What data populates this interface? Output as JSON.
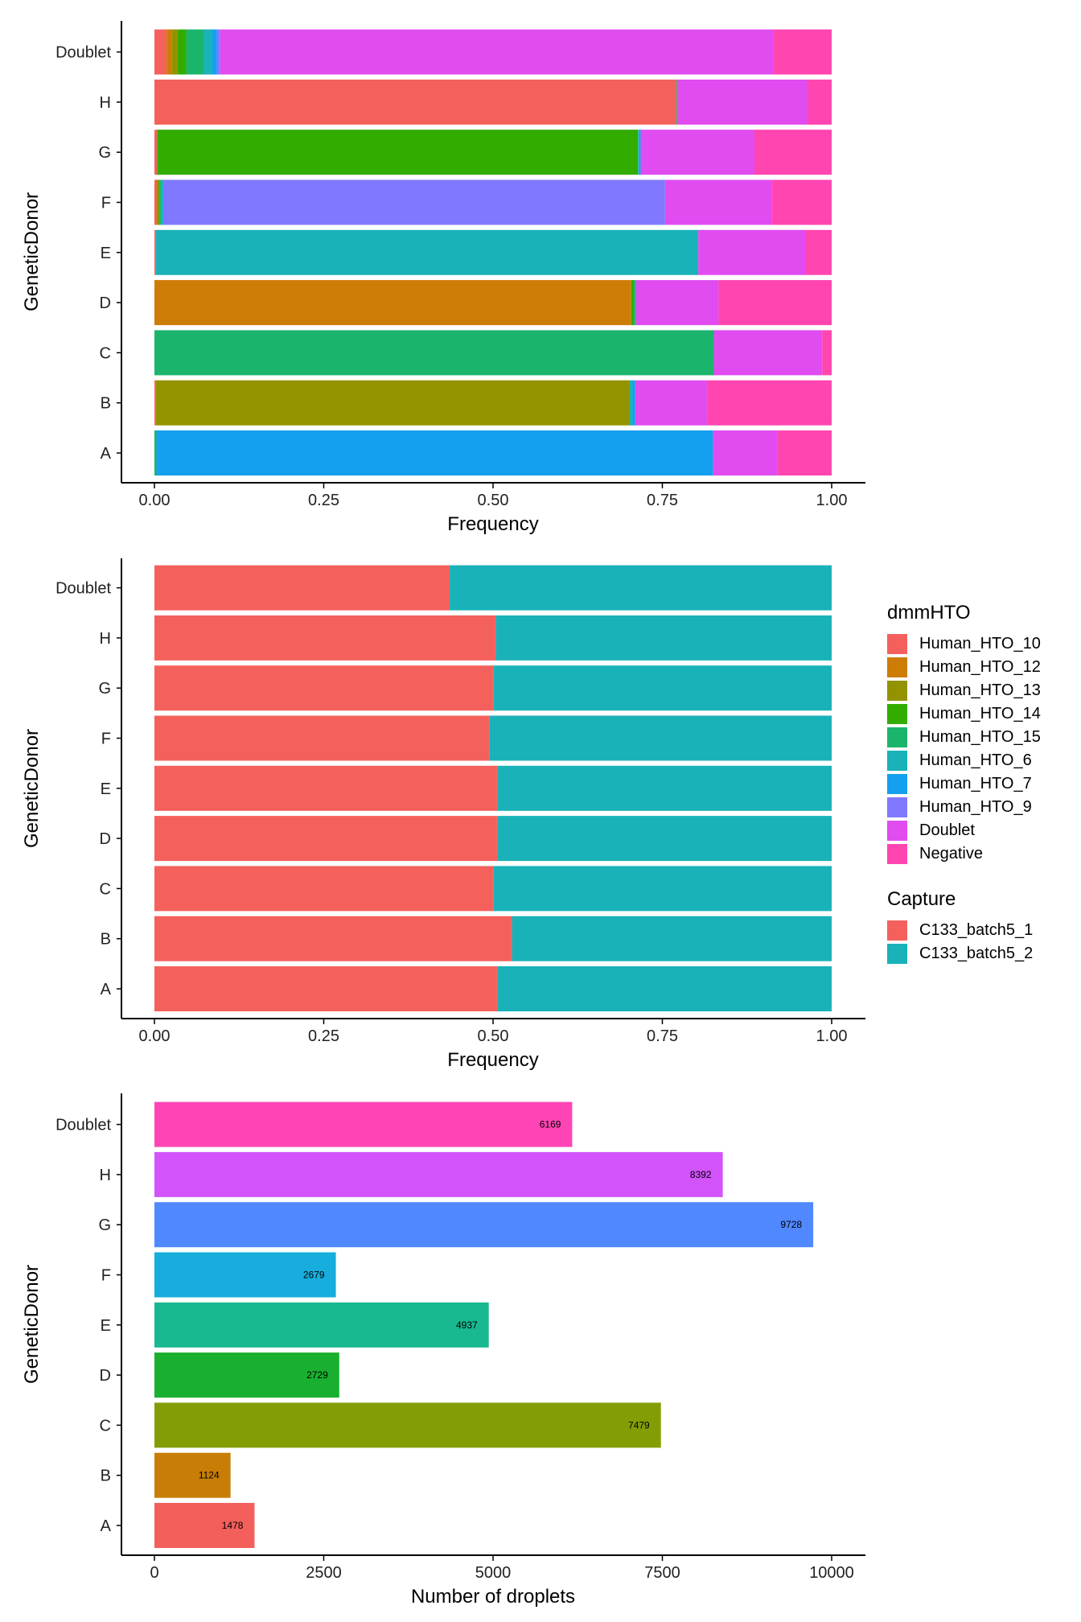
{
  "chart_data": [
    {
      "type": "bar",
      "orientation": "horizontal",
      "stacked": "fill",
      "categories": [
        "A",
        "B",
        "C",
        "D",
        "E",
        "F",
        "G",
        "H",
        "Doublet"
      ],
      "xlabel": "Frequency",
      "ylabel": "GeneticDonor",
      "xlim": [
        0,
        1
      ],
      "xticks": [
        "0.00",
        "0.25",
        "0.50",
        "0.75",
        "1.00"
      ],
      "grid": false,
      "legend": "dmmHTO",
      "series": [
        {
          "name": "Human_HTO_10",
          "color": "#F4615C",
          "values": [
            0,
            0.002,
            0,
            0,
            0.002,
            0.003,
            0.004,
            0.771,
            0.018
          ]
        },
        {
          "name": "Human_HTO_12",
          "color": "#CD7C06",
          "values": [
            0,
            0,
            0,
            0.704,
            0,
            0.003,
            0,
            0,
            0.008
          ]
        },
        {
          "name": "Human_HTO_13",
          "color": "#939300",
          "values": [
            0,
            0.7,
            0,
            0,
            0,
            0,
            0,
            0,
            0.008
          ]
        },
        {
          "name": "Human_HTO_14",
          "color": "#33AC00",
          "values": [
            0,
            0,
            0,
            0.004,
            0,
            0.002,
            0.71,
            0,
            0.013
          ]
        },
        {
          "name": "Human_HTO_15",
          "color": "#1BB46C",
          "values": [
            0.003,
            0,
            0.826,
            0.003,
            0,
            0.002,
            0,
            0.002,
            0.026
          ]
        },
        {
          "name": "Human_HTO_6",
          "color": "#19B2B8",
          "values": [
            0,
            0.004,
            0,
            0,
            0.801,
            0.003,
            0.002,
            0,
            0.012
          ]
        },
        {
          "name": "Human_HTO_7",
          "color": "#14A0EE",
          "values": [
            0.822,
            0.004,
            0,
            0,
            0,
            0,
            0.002,
            0,
            0.007
          ]
        },
        {
          "name": "Human_HTO_9",
          "color": "#8079FF",
          "values": [
            0,
            0,
            0,
            0,
            0,
            0.741,
            0,
            0,
            0.005
          ]
        },
        {
          "name": "Doublet",
          "color": "#E04CF0",
          "values": [
            0.095,
            0.107,
            0.16,
            0.122,
            0.159,
            0.158,
            0.168,
            0.192,
            0.817
          ]
        },
        {
          "name": "Negative",
          "color": "#FF45B0",
          "values": [
            0.08,
            0.183,
            0.014,
            0.167,
            0.038,
            0.088,
            0.114,
            0.035,
            0.086
          ]
        }
      ]
    },
    {
      "type": "bar",
      "orientation": "horizontal",
      "stacked": "fill",
      "categories": [
        "A",
        "B",
        "C",
        "D",
        "E",
        "F",
        "G",
        "H",
        "Doublet"
      ],
      "xlabel": "Frequency",
      "ylabel": "GeneticDonor",
      "xlim": [
        0,
        1
      ],
      "xticks": [
        "0.00",
        "0.25",
        "0.50",
        "0.75",
        "1.00"
      ],
      "grid": false,
      "legend": "Capture",
      "series": [
        {
          "name": "C133_batch5_1",
          "color": "#F4615C",
          "values": [
            0.507,
            0.528,
            0.501,
            0.507,
            0.507,
            0.495,
            0.501,
            0.504,
            0.436
          ]
        },
        {
          "name": "C133_batch5_2",
          "color": "#19B2B8",
          "values": [
            0.493,
            0.472,
            0.499,
            0.493,
            0.493,
            0.505,
            0.499,
            0.496,
            0.564
          ]
        }
      ]
    },
    {
      "type": "bar",
      "orientation": "horizontal",
      "categories": [
        "A",
        "B",
        "C",
        "D",
        "E",
        "F",
        "G",
        "H",
        "Doublet"
      ],
      "values": [
        1478,
        1124,
        7479,
        2729,
        4937,
        2679,
        9728,
        8392,
        6169
      ],
      "data_labels": [
        "1478",
        "1124",
        "7479",
        "2729",
        "4937",
        "2679",
        "9728",
        "8392",
        "6169"
      ],
      "colors": [
        "#F35F5B",
        "#C87E06",
        "#839E05",
        "#18B02E",
        "#18B890",
        "#17ADDD",
        "#5088FF",
        "#D153F9",
        "#FF45B5"
      ],
      "xlabel": "Number of droplets",
      "ylabel": "GeneticDonor",
      "xlim": [
        0,
        10000
      ],
      "xticks": [
        "0",
        "2500",
        "5000",
        "7500",
        "10000"
      ],
      "grid": false
    }
  ],
  "legend": {
    "dmmHTO": {
      "title": "dmmHTO",
      "items": [
        {
          "label": "Human_HTO_10",
          "color": "#F4615C"
        },
        {
          "label": "Human_HTO_12",
          "color": "#CD7C06"
        },
        {
          "label": "Human_HTO_13",
          "color": "#939300"
        },
        {
          "label": "Human_HTO_14",
          "color": "#33AC00"
        },
        {
          "label": "Human_HTO_15",
          "color": "#1BB46C"
        },
        {
          "label": "Human_HTO_6",
          "color": "#19B2B8"
        },
        {
          "label": "Human_HTO_7",
          "color": "#14A0EE"
        },
        {
          "label": "Human_HTO_9",
          "color": "#8079FF"
        },
        {
          "label": "Doublet",
          "color": "#E04CF0"
        },
        {
          "label": "Negative",
          "color": "#FF45B0"
        }
      ]
    },
    "capture": {
      "title": "Capture",
      "items": [
        {
          "label": "C133_batch5_1",
          "color": "#F4615C"
        },
        {
          "label": "C133_batch5_2",
          "color": "#19B2B8"
        }
      ]
    }
  }
}
